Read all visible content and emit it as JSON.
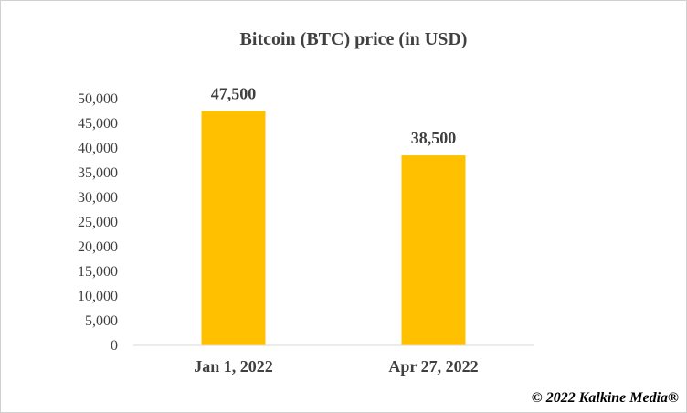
{
  "chart_data": {
    "type": "bar",
    "title": "Bitcoin (BTC) price (in USD)",
    "categories": [
      "Jan 1, 2022",
      "Apr 27, 2022"
    ],
    "values": [
      47500,
      38500
    ],
    "data_labels": [
      "47,500",
      "38,500"
    ],
    "ylim": [
      0,
      50000
    ],
    "yticks": [
      0,
      5000,
      10000,
      15000,
      20000,
      25000,
      30000,
      35000,
      40000,
      45000,
      50000
    ],
    "ytick_labels": [
      "0",
      "5,000",
      "10,000",
      "15,000",
      "20,000",
      "25,000",
      "30,000",
      "35,000",
      "40,000",
      "45,000",
      "50,000"
    ],
    "xlabel": "",
    "ylabel": "",
    "grid": false,
    "legend": false,
    "bar_color": "#FFC000"
  },
  "footer": {
    "copyright": "© 2022 Kalkine Media®"
  }
}
